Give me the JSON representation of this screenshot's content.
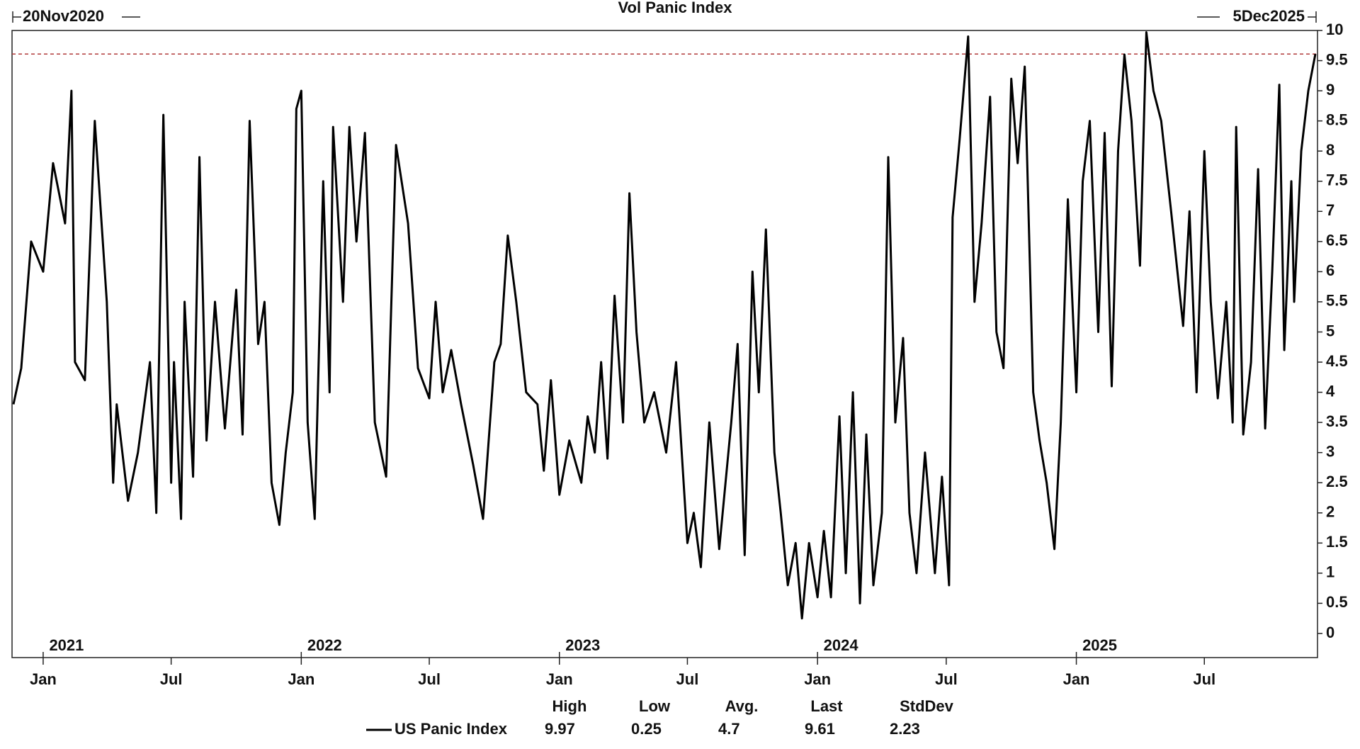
{
  "chart_data": {
    "type": "line",
    "title": "Vol Panic Index",
    "start_label": "20Nov2020",
    "end_label": "5Dec2025",
    "xlim": [
      "2020-11-18",
      "2025-12-08"
    ],
    "ylim": [
      -0.4,
      10
    ],
    "yticks": [
      0,
      0.5,
      1,
      1.5,
      2,
      2.5,
      3,
      3.5,
      4,
      4.5,
      5,
      5.5,
      6,
      6.5,
      7,
      7.5,
      8,
      8.5,
      9,
      9.5,
      10
    ],
    "xticks": [
      {
        "value": "2021-01-01",
        "label": "Jan"
      },
      {
        "value": "2021-07-01",
        "label": "Jul"
      },
      {
        "value": "2022-01-01",
        "label": "Jan"
      },
      {
        "value": "2022-07-01",
        "label": "Jul"
      },
      {
        "value": "2023-01-01",
        "label": "Jan"
      },
      {
        "value": "2023-07-01",
        "label": "Jul"
      },
      {
        "value": "2024-01-01",
        "label": "Jan"
      },
      {
        "value": "2024-07-01",
        "label": "Jul"
      },
      {
        "value": "2025-01-01",
        "label": "Jan"
      },
      {
        "value": "2025-07-01",
        "label": "Jul"
      }
    ],
    "year_labels": [
      {
        "value": "2021-01-01",
        "label": "2021"
      },
      {
        "value": "2022-01-01",
        "label": "2022"
      },
      {
        "value": "2023-01-01",
        "label": "2023"
      },
      {
        "value": "2024-01-01",
        "label": "2024"
      },
      {
        "value": "2025-01-01",
        "label": "2025"
      }
    ],
    "reference_line": {
      "value": 9.61,
      "color": "#b03a3a"
    },
    "x": [
      "2020-11-20",
      "2020-12-01",
      "2020-12-15",
      "2021-01-01",
      "2021-01-15",
      "2021-02-01",
      "2021-02-10",
      "2021-02-15",
      "2021-03-01",
      "2021-03-15",
      "2021-04-01",
      "2021-04-10",
      "2021-04-15",
      "2021-05-01",
      "2021-05-15",
      "2021-06-01",
      "2021-06-10",
      "2021-06-20",
      "2021-07-01",
      "2021-07-05",
      "2021-07-15",
      "2021-07-20",
      "2021-08-01",
      "2021-08-10",
      "2021-08-20",
      "2021-09-01",
      "2021-09-15",
      "2021-10-01",
      "2021-10-10",
      "2021-10-20",
      "2021-11-01",
      "2021-11-10",
      "2021-11-20",
      "2021-12-01",
      "2021-12-10",
      "2021-12-20",
      "2021-12-25",
      "2022-01-01",
      "2022-01-10",
      "2022-01-20",
      "2022-02-01",
      "2022-02-10",
      "2022-02-15",
      "2022-03-01",
      "2022-03-10",
      "2022-03-20",
      "2022-04-01",
      "2022-04-15",
      "2022-05-01",
      "2022-05-15",
      "2022-06-01",
      "2022-06-15",
      "2022-07-01",
      "2022-07-10",
      "2022-07-20",
      "2022-08-01",
      "2022-08-15",
      "2022-09-01",
      "2022-09-15",
      "2022-10-01",
      "2022-10-10",
      "2022-10-20",
      "2022-11-01",
      "2022-11-15",
      "2022-12-01",
      "2022-12-10",
      "2022-12-20",
      "2023-01-01",
      "2023-01-15",
      "2023-02-01",
      "2023-02-10",
      "2023-02-20",
      "2023-03-01",
      "2023-03-10",
      "2023-03-20",
      "2023-04-01",
      "2023-04-10",
      "2023-04-20",
      "2023-05-01",
      "2023-05-15",
      "2023-06-01",
      "2023-06-15",
      "2023-07-01",
      "2023-07-10",
      "2023-07-20",
      "2023-08-01",
      "2023-08-15",
      "2023-09-01",
      "2023-09-10",
      "2023-09-20",
      "2023-10-01",
      "2023-10-10",
      "2023-10-20",
      "2023-11-01",
      "2023-11-10",
      "2023-11-20",
      "2023-12-01",
      "2023-12-10",
      "2023-12-20",
      "2024-01-01",
      "2024-01-10",
      "2024-01-20",
      "2024-02-01",
      "2024-02-10",
      "2024-02-20",
      "2024-03-01",
      "2024-03-10",
      "2024-03-20",
      "2024-04-01",
      "2024-04-10",
      "2024-04-20",
      "2024-05-01",
      "2024-05-10",
      "2024-05-20",
      "2024-06-01",
      "2024-06-15",
      "2024-06-25",
      "2024-07-05",
      "2024-07-10",
      "2024-07-20",
      "2024-08-01",
      "2024-08-10",
      "2024-08-20",
      "2024-09-01",
      "2024-09-10",
      "2024-09-20",
      "2024-10-01",
      "2024-10-10",
      "2024-10-20",
      "2024-11-01",
      "2024-11-10",
      "2024-11-20",
      "2024-12-01",
      "2024-12-10",
      "2024-12-20",
      "2025-01-01",
      "2025-01-10",
      "2025-01-20",
      "2025-02-01",
      "2025-02-10",
      "2025-02-20",
      "2025-03-01",
      "2025-03-10",
      "2025-03-20",
      "2025-04-01",
      "2025-04-10",
      "2025-04-20",
      "2025-05-01",
      "2025-05-15",
      "2025-06-01",
      "2025-06-10",
      "2025-06-20",
      "2025-07-01",
      "2025-07-10",
      "2025-07-20",
      "2025-08-01",
      "2025-08-10",
      "2025-08-15",
      "2025-08-25",
      "2025-09-05",
      "2025-09-15",
      "2025-09-25",
      "2025-10-05",
      "2025-10-15",
      "2025-10-22",
      "2025-11-01",
      "2025-11-05",
      "2025-11-15",
      "2025-11-25",
      "2025-12-05"
    ],
    "series": [
      {
        "name": "US Panic Index",
        "color": "#000000",
        "values": [
          3.8,
          4.4,
          6.5,
          6.0,
          7.8,
          6.8,
          9.0,
          4.5,
          4.2,
          8.5,
          5.5,
          2.5,
          3.8,
          2.2,
          3.0,
          4.5,
          2.0,
          8.6,
          2.5,
          4.5,
          1.9,
          5.5,
          2.6,
          7.9,
          3.2,
          5.5,
          3.4,
          5.7,
          3.3,
          8.5,
          4.8,
          5.5,
          2.5,
          1.8,
          3.0,
          4.0,
          8.7,
          9.0,
          3.5,
          1.9,
          7.5,
          4.0,
          8.4,
          5.5,
          8.4,
          6.5,
          8.3,
          3.5,
          2.6,
          8.1,
          6.8,
          4.4,
          3.9,
          5.5,
          4.0,
          4.7,
          3.8,
          2.8,
          1.9,
          4.5,
          4.8,
          6.6,
          5.5,
          4.0,
          3.8,
          2.7,
          4.2,
          2.3,
          3.2,
          2.5,
          3.6,
          3.0,
          4.5,
          2.9,
          5.6,
          3.5,
          7.3,
          5.0,
          3.5,
          4.0,
          3.0,
          4.5,
          1.5,
          2.0,
          1.1,
          3.5,
          1.4,
          3.5,
          4.8,
          1.3,
          6.0,
          4.0,
          6.7,
          3.0,
          2.0,
          0.8,
          1.5,
          0.25,
          1.5,
          0.6,
          1.7,
          0.6,
          3.6,
          1.0,
          4.0,
          0.5,
          3.3,
          0.8,
          2.0,
          7.9,
          3.5,
          4.9,
          2.0,
          1.0,
          3.0,
          1.0,
          2.6,
          0.8,
          6.9,
          8.2,
          9.9,
          5.5,
          6.8,
          8.9,
          5.0,
          4.4,
          9.2,
          7.8,
          9.4,
          4.0,
          3.2,
          2.5,
          1.4,
          3.5,
          7.2,
          4.0,
          7.5,
          8.5,
          5.0,
          8.3,
          4.1,
          8.0,
          9.6,
          8.5,
          6.1,
          9.97,
          9.0,
          8.5,
          7.0,
          5.1,
          7.0,
          4.0,
          8.0,
          5.5,
          3.9,
          5.5,
          3.5,
          8.4,
          3.3,
          4.5,
          7.7,
          3.4,
          6.0,
          9.1,
          4.7,
          7.5,
          5.5,
          8.0,
          9.0,
          9.61
        ]
      }
    ],
    "stats": {
      "headers": [
        "High",
        "Low",
        "Avg.",
        "Last",
        "StdDev"
      ],
      "values": [
        9.97,
        0.25,
        4.7,
        9.61,
        2.23
      ]
    }
  }
}
